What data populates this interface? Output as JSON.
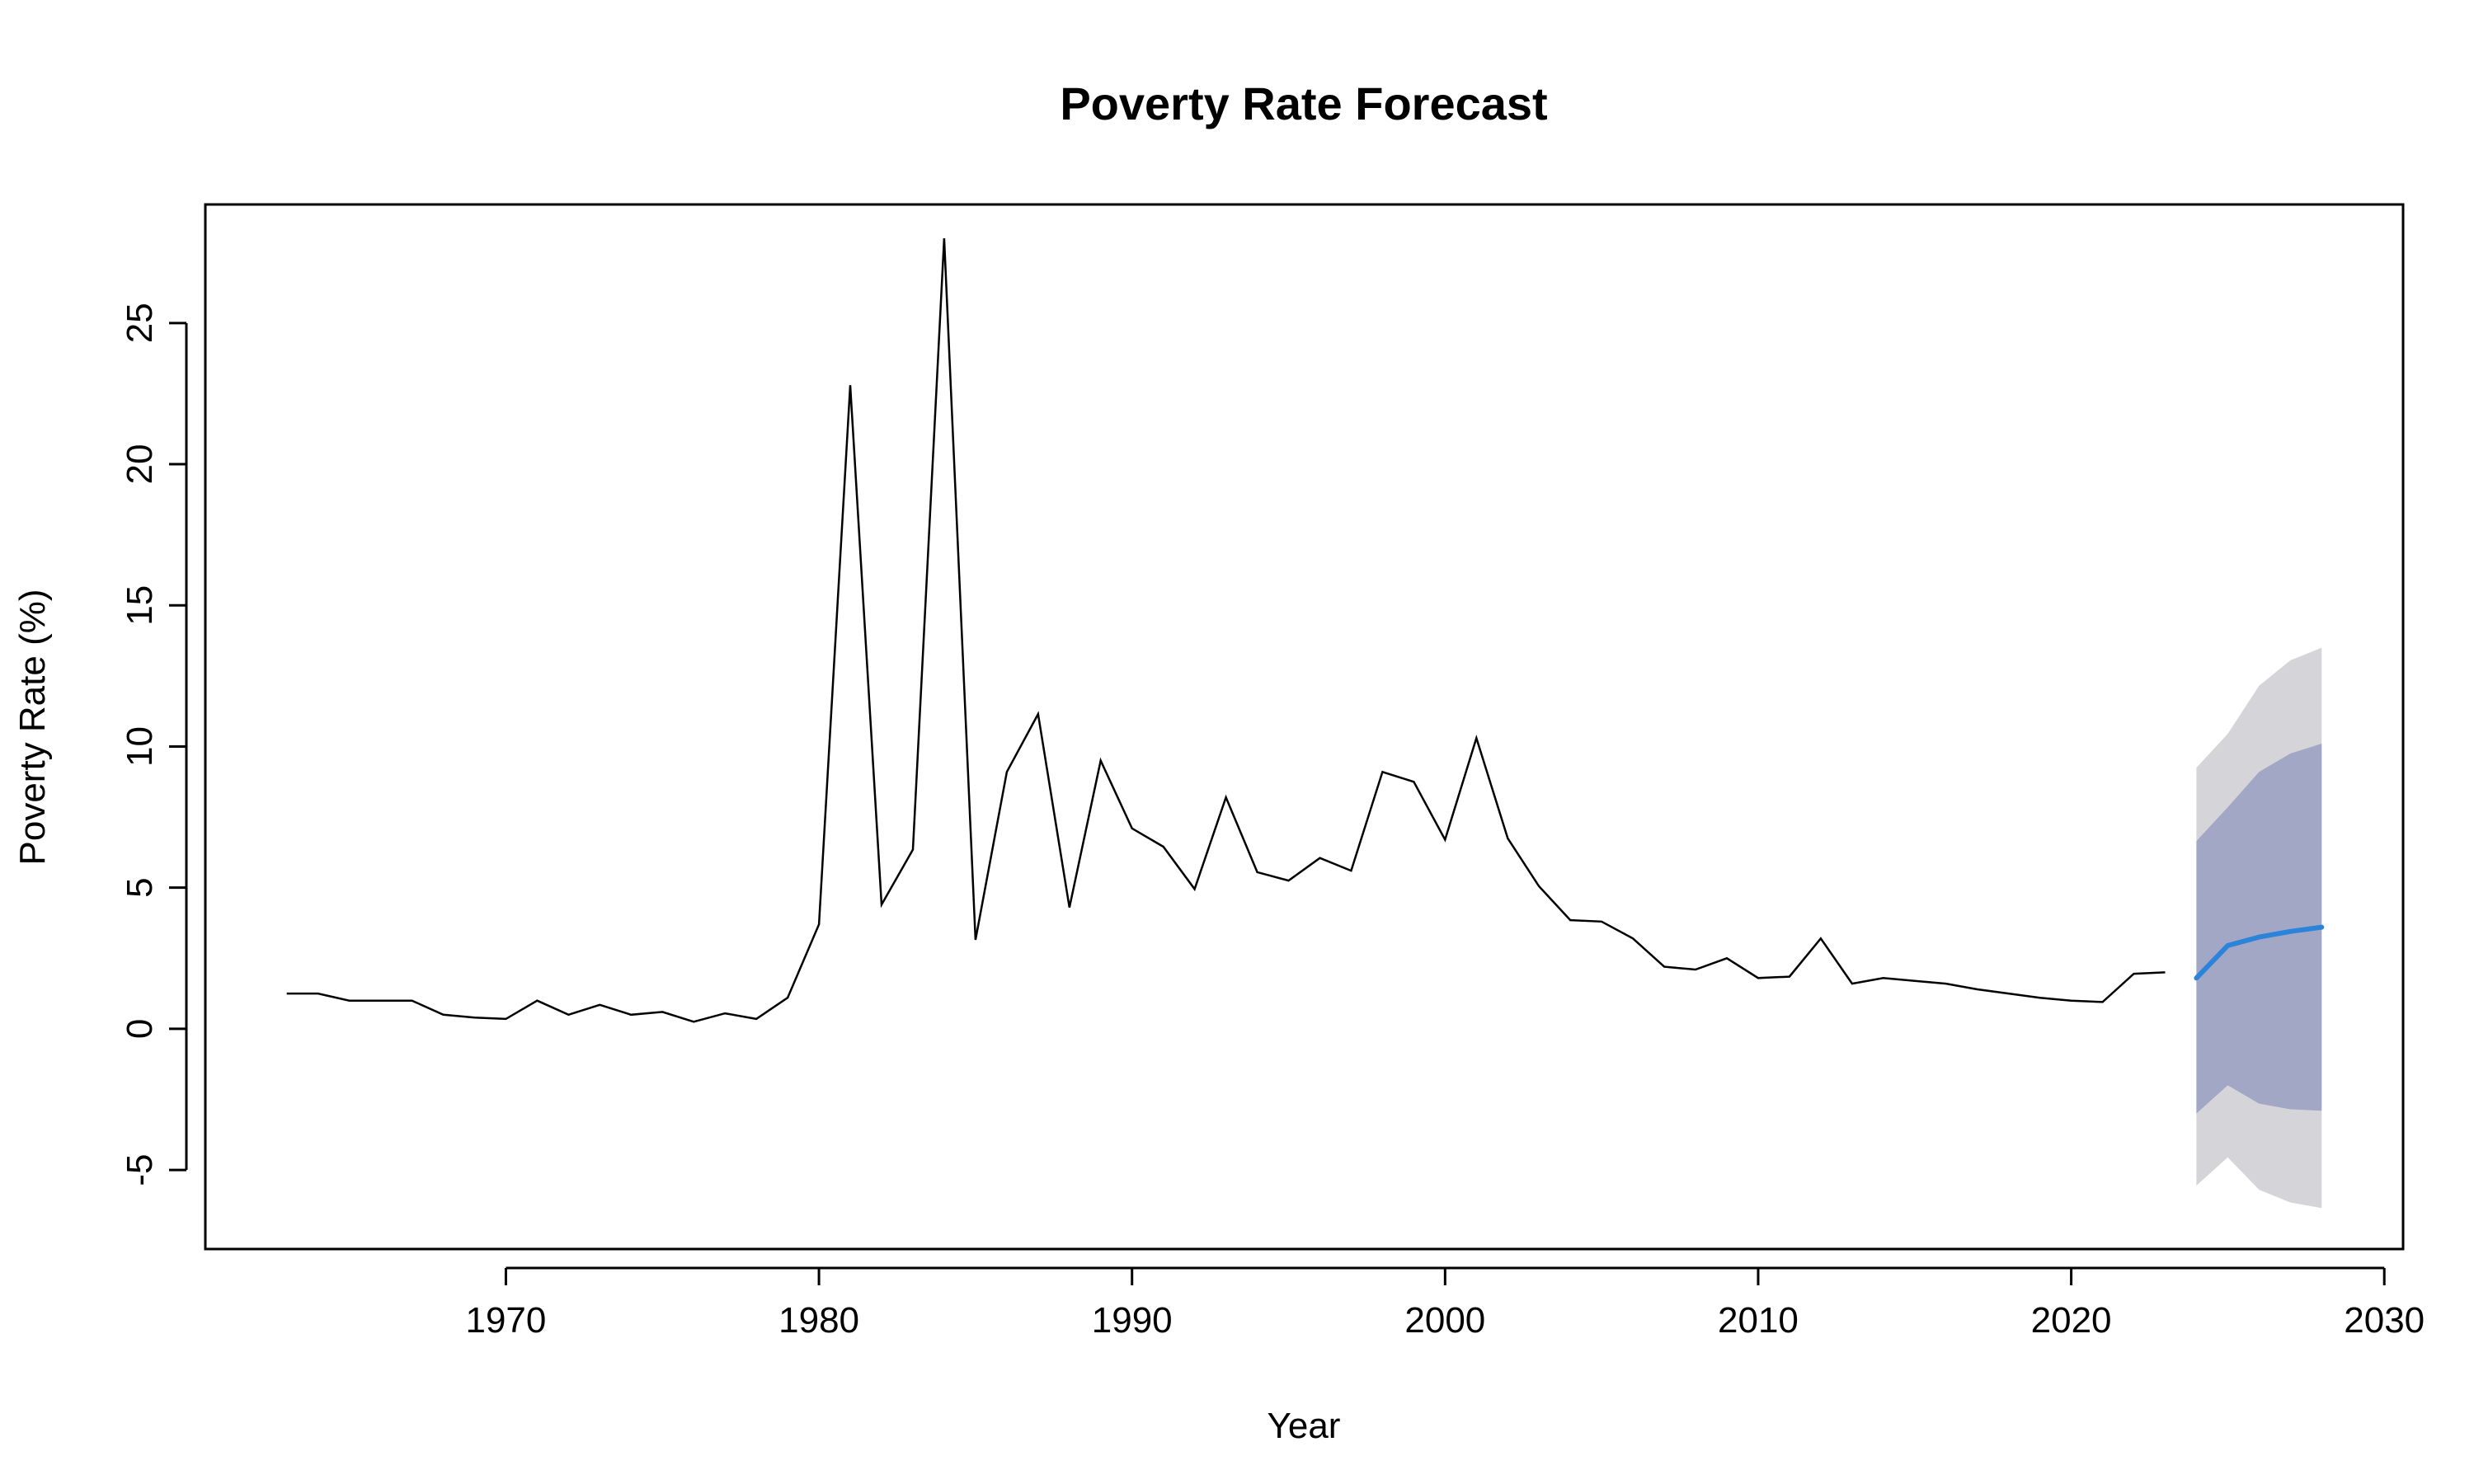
{
  "chart_data": {
    "type": "line",
    "title": "Poverty Rate Forecast",
    "xlabel": "Year",
    "ylabel": "Poverty Rate (%)",
    "xlim": [
      1960.4,
      2030.6
    ],
    "ylim": [
      -7.8,
      29.2
    ],
    "x_ticks": [
      1970,
      1980,
      1990,
      2000,
      2010,
      2020,
      2030
    ],
    "y_ticks": [
      -5,
      0,
      5,
      10,
      15,
      20,
      25
    ],
    "grid": false,
    "legend": "none",
    "colors": {
      "history": "#000000",
      "forecast": "#2B83DA",
      "band_80": "#A3A7C6",
      "band_95": "#D4D4D9"
    },
    "series": [
      {
        "x": [
          1963,
          1964,
          1965,
          1966,
          1967,
          1968,
          1969,
          1970,
          1971,
          1972,
          1973,
          1974,
          1975,
          1976,
          1977,
          1978,
          1979,
          1980,
          1981,
          1982,
          1983,
          1984,
          1985,
          1986,
          1987,
          1988,
          1989,
          1990,
          1991,
          1992,
          1993,
          1994,
          1995,
          1996,
          1997,
          1998,
          1999,
          2000,
          2001,
          2002,
          2003,
          2004,
          2005,
          2006,
          2007,
          2008,
          2009,
          2010,
          2011,
          2012,
          2013,
          2014,
          2015,
          2016,
          2017,
          2018,
          2019,
          2020,
          2021,
          2022,
          2023
        ],
        "values": [
          1.25,
          1.25,
          1.0,
          1.0,
          1.0,
          0.5,
          0.4,
          0.35,
          1.0,
          0.5,
          0.85,
          0.5,
          0.6,
          0.25,
          0.55,
          0.35,
          1.1,
          3.7,
          22.8,
          4.4,
          6.35,
          28.0,
          3.15,
          9.1,
          11.15,
          4.3,
          9.5,
          7.1,
          6.45,
          4.95,
          8.2,
          5.55,
          5.25,
          6.05,
          5.6,
          9.1,
          8.75,
          6.7,
          10.3,
          6.75,
          5.05,
          3.85,
          3.8,
          3.2,
          2.2,
          2.1,
          2.5,
          1.8,
          1.85,
          3.2,
          1.6,
          1.8,
          1.7,
          1.6,
          1.4,
          1.25,
          1.1,
          1.0,
          0.95,
          1.95,
          2.0
        ]
      },
      {
        "x": [
          2024,
          2025,
          2026,
          2027,
          2028
        ],
        "values": [
          1.8,
          2.95,
          3.25,
          3.45,
          3.6
        ],
        "lo80": [
          -3.0,
          -2.0,
          -2.65,
          -2.85,
          -2.9
        ],
        "hi80": [
          6.65,
          7.85,
          9.1,
          9.75,
          10.1
        ],
        "lo95": [
          -5.55,
          -4.55,
          -5.7,
          -6.15,
          -6.35
        ],
        "hi95": [
          9.25,
          10.45,
          12.15,
          13.05,
          13.5
        ]
      }
    ]
  }
}
